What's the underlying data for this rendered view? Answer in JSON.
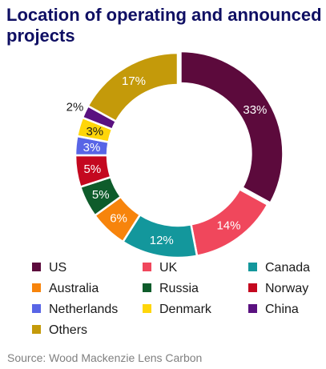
{
  "title": "Location of operating and announced projects",
  "source": "Source: Wood Mackenzie Lens Carbon",
  "chart_data": {
    "type": "pie",
    "donut": true,
    "legend_position": "bottom",
    "categories": [
      "US",
      "UK",
      "Canada",
      "Australia",
      "Russia",
      "Norway",
      "Netherlands",
      "Denmark",
      "China",
      "Others"
    ],
    "values": [
      33,
      14,
      12,
      6,
      5,
      5,
      3,
      3,
      2,
      17
    ],
    "labels": [
      "33%",
      "14%",
      "12%",
      "6%",
      "5%",
      "5%",
      "3%",
      "3%",
      "2%",
      "17%"
    ],
    "colors": [
      "#5c0a3c",
      "#f0475c",
      "#13979c",
      "#f7840c",
      "#0e5c2b",
      "#c4081f",
      "#5865e6",
      "#ffd60a",
      "#5a1180",
      "#c49a0a"
    ],
    "label_colors": [
      "#ffffff",
      "#ffffff",
      "#ffffff",
      "#ffffff",
      "#ffffff",
      "#ffffff",
      "#ffffff",
      "#1a1a1a",
      "#1a1a1a",
      "#ffffff"
    ]
  }
}
